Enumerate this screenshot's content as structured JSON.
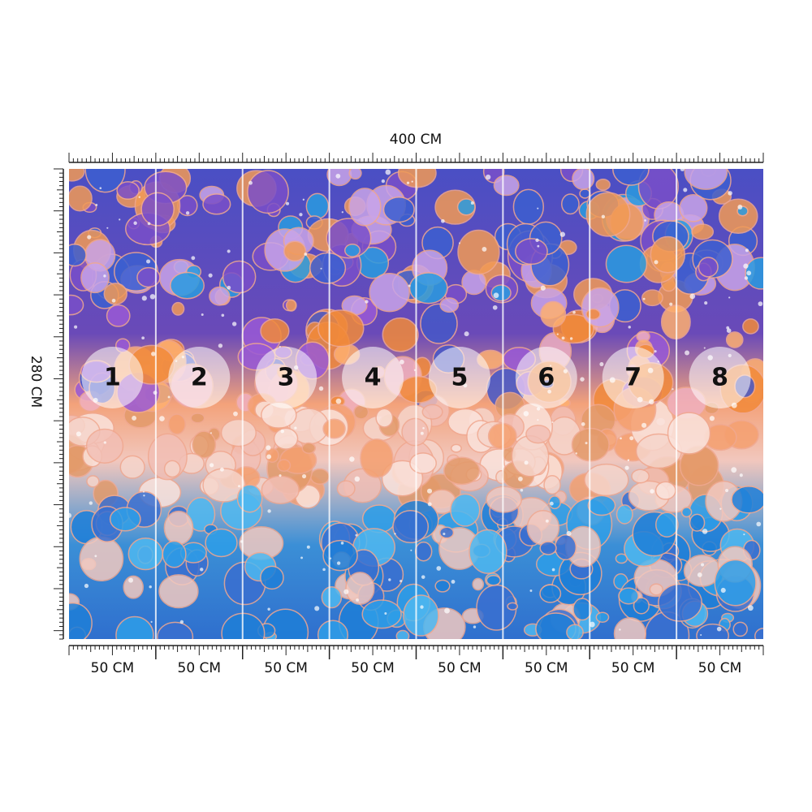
{
  "width_label": "400 CM",
  "height_label": "280 CM",
  "panels": [
    {
      "number": 1,
      "width_label": "50 CM"
    },
    {
      "number": 2,
      "width_label": "50 CM"
    },
    {
      "number": 3,
      "width_label": "50 CM"
    },
    {
      "number": 4,
      "width_label": "50 CM"
    },
    {
      "number": 5,
      "width_label": "50 CM"
    },
    {
      "number": 6,
      "width_label": "50 CM"
    },
    {
      "number": 7,
      "width_label": "50 CM"
    },
    {
      "number": 8,
      "width_label": "50 CM"
    }
  ]
}
